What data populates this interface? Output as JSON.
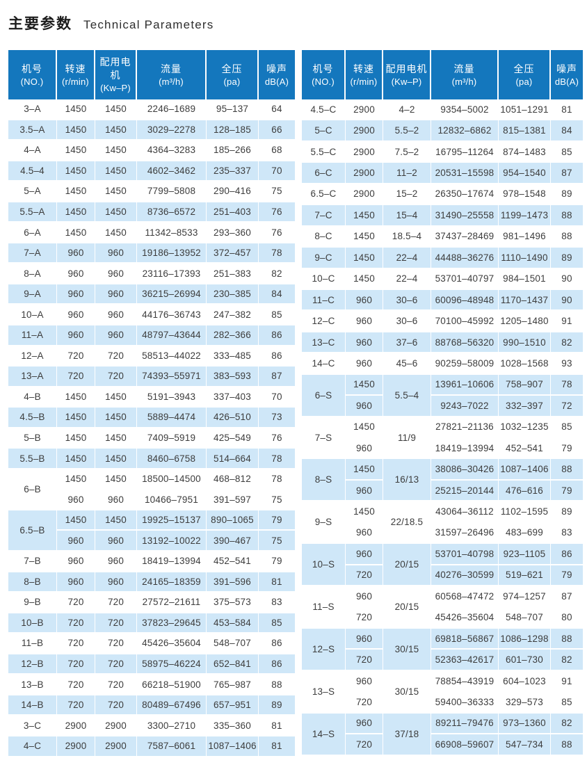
{
  "page_title": {
    "zh": "主要参数",
    "en": "Technical Parameters"
  },
  "table_columns": [
    {
      "zh": "机号",
      "sub": "(NO.)"
    },
    {
      "zh": "转速",
      "sub": "(r/min)"
    },
    {
      "zh": "配用电机",
      "sub": "(Kw–P)"
    },
    {
      "zh": "流量",
      "sub": "(m³/h)"
    },
    {
      "zh": "全压",
      "sub": "(pa)"
    },
    {
      "zh": "噪声",
      "sub": "dB(A)"
    }
  ],
  "colors": {
    "header_bg": "#1477bd",
    "row_alt_bg": "#cfe7f8",
    "text_color": "#3c3c3c"
  },
  "tables": {
    "left": {
      "rows": [
        {
          "no": "3–A",
          "speed": "1450",
          "motor": "1450",
          "flow": "2246–1689",
          "pressure": "95–137",
          "noise": "64"
        },
        {
          "no": "3.5–A",
          "speed": "1450",
          "motor": "1450",
          "flow": "3029–2278",
          "pressure": "128–185",
          "noise": "66"
        },
        {
          "no": "4–A",
          "speed": "1450",
          "motor": "1450",
          "flow": "4364–3283",
          "pressure": "185–266",
          "noise": "68"
        },
        {
          "no": "4.5–4",
          "speed": "1450",
          "motor": "1450",
          "flow": "4602–3462",
          "pressure": "235–337",
          "noise": "70"
        },
        {
          "no": "5–A",
          "speed": "1450",
          "motor": "1450",
          "flow": "7799–5808",
          "pressure": "290–416",
          "noise": "75"
        },
        {
          "no": "5.5–A",
          "speed": "1450",
          "motor": "1450",
          "flow": "8736–6572",
          "pressure": "251–403",
          "noise": "76"
        },
        {
          "no": "6–A",
          "speed": "1450",
          "motor": "1450",
          "flow": "11342–8533",
          "pressure": "293–360",
          "noise": "76"
        },
        {
          "no": "7–A",
          "speed": "960",
          "motor": "960",
          "flow": "19186–13952",
          "pressure": "372–457",
          "noise": "78"
        },
        {
          "no": "8–A",
          "speed": "960",
          "motor": "960",
          "flow": "23116–17393",
          "pressure": "251–383",
          "noise": "82"
        },
        {
          "no": "9–A",
          "speed": "960",
          "motor": "960",
          "flow": "36215–26994",
          "pressure": "230–385",
          "noise": "84"
        },
        {
          "no": "10–A",
          "speed": "960",
          "motor": "960",
          "flow": "44176–36743",
          "pressure": "247–382",
          "noise": "85"
        },
        {
          "no": "11–A",
          "speed": "960",
          "motor": "960",
          "flow": "48797–43644",
          "pressure": "282–366",
          "noise": "86"
        },
        {
          "no": "12–A",
          "speed": "720",
          "motor": "720",
          "flow": "58513–44022",
          "pressure": "333–485",
          "noise": "86"
        },
        {
          "no": "13–A",
          "speed": "720",
          "motor": "720",
          "flow": "74393–55971",
          "pressure": "383–593",
          "noise": "87"
        },
        {
          "no": "4–B",
          "speed": "1450",
          "motor": "1450",
          "flow": "5191–3943",
          "pressure": "337–403",
          "noise": "70"
        },
        {
          "no": "4.5–B",
          "speed": "1450",
          "motor": "1450",
          "flow": "5889–4474",
          "pressure": "426–510",
          "noise": "73"
        },
        {
          "no": "5–B",
          "speed": "1450",
          "motor": "1450",
          "flow": "7409–5919",
          "pressure": "425–549",
          "noise": "76"
        },
        {
          "no": "5.5–B",
          "speed": "1450",
          "motor": "1450",
          "flow": "8460–6758",
          "pressure": "514–664",
          "noise": "78"
        },
        {
          "no": "6–B",
          "sub": [
            {
              "speed": "1450",
              "motor": "1450",
              "flow": "18500–14500",
              "pressure": "468–812",
              "noise": "78"
            },
            {
              "speed": "960",
              "motor": "960",
              "flow": "10466–7951",
              "pressure": "391–597",
              "noise": "75"
            }
          ]
        },
        {
          "no": "6.5–B",
          "sub": [
            {
              "speed": "1450",
              "motor": "1450",
              "flow": "19925–15137",
              "pressure": "890–1065",
              "noise": "79"
            },
            {
              "speed": "960",
              "motor": "960",
              "flow": "13192–10022",
              "pressure": "390–467",
              "noise": "75"
            }
          ]
        },
        {
          "no": "7–B",
          "speed": "960",
          "motor": "960",
          "flow": "18419–13994",
          "pressure": "452–541",
          "noise": "79"
        },
        {
          "no": "8–B",
          "speed": "960",
          "motor": "960",
          "flow": "24165–18359",
          "pressure": "391–596",
          "noise": "81"
        },
        {
          "no": "9–B",
          "speed": "720",
          "motor": "720",
          "flow": "27572–21611",
          "pressure": "375–573",
          "noise": "83"
        },
        {
          "no": "10–B",
          "speed": "720",
          "motor": "720",
          "flow": "37823–29645",
          "pressure": "453–584",
          "noise": "85"
        },
        {
          "no": "11–B",
          "speed": "720",
          "motor": "720",
          "flow": "45426–35604",
          "pressure": "548–707",
          "noise": "86"
        },
        {
          "no": "12–B",
          "speed": "720",
          "motor": "720",
          "flow": "58975–46224",
          "pressure": "652–841",
          "noise": "86"
        },
        {
          "no": "13–B",
          "speed": "720",
          "motor": "720",
          "flow": "66218–51900",
          "pressure": "765–987",
          "noise": "88"
        },
        {
          "no": "14–B",
          "speed": "720",
          "motor": "720",
          "flow": "80489–67496",
          "pressure": "657–951",
          "noise": "89"
        },
        {
          "no": "3–C",
          "speed": "2900",
          "motor": "2900",
          "flow": "3300–2710",
          "pressure": "335–360",
          "noise": "81"
        },
        {
          "no": "4–C",
          "speed": "2900",
          "motor": "2900",
          "flow": "7587–6061",
          "pressure": "1087–1406",
          "noise": "81"
        }
      ]
    },
    "right": {
      "rows": [
        {
          "no": "4.5–C",
          "speed": "2900",
          "motor": "4–2",
          "flow": "9354–5002",
          "pressure": "1051–1291",
          "noise": "81"
        },
        {
          "no": "5–C",
          "speed": "2900",
          "motor": "5.5–2",
          "flow": "12832–6862",
          "pressure": "815–1381",
          "noise": "84"
        },
        {
          "no": "5.5–C",
          "speed": "2900",
          "motor": "7.5–2",
          "flow": "16795–11264",
          "pressure": "874–1483",
          "noise": "85"
        },
        {
          "no": "6–C",
          "speed": "2900",
          "motor": "11–2",
          "flow": "20531–15598",
          "pressure": "954–1540",
          "noise": "87"
        },
        {
          "no": "6.5–C",
          "speed": "2900",
          "motor": "15–2",
          "flow": "26350–17674",
          "pressure": "978–1548",
          "noise": "89"
        },
        {
          "no": "7–C",
          "speed": "1450",
          "motor": "15–4",
          "flow": "31490–25558",
          "pressure": "1199–1473",
          "noise": "88"
        },
        {
          "no": "8–C",
          "speed": "1450",
          "motor": "18.5–4",
          "flow": "37437–28469",
          "pressure": "981–1496",
          "noise": "88"
        },
        {
          "no": "9–C",
          "speed": "1450",
          "motor": "22–4",
          "flow": "44488–36276",
          "pressure": "1110–1490",
          "noise": "89"
        },
        {
          "no": "10–C",
          "speed": "1450",
          "motor": "22–4",
          "flow": "53701–40797",
          "pressure": "984–1501",
          "noise": "90"
        },
        {
          "no": "11–C",
          "speed": "960",
          "motor": "30–6",
          "flow": "60096–48948",
          "pressure": "1170–1437",
          "noise": "90"
        },
        {
          "no": "12–C",
          "speed": "960",
          "motor": "30–6",
          "flow": "70100–45992",
          "pressure": "1205–1480",
          "noise": "91"
        },
        {
          "no": "13–C",
          "speed": "960",
          "motor": "37–6",
          "flow": "88768–56320",
          "pressure": "990–1510",
          "noise": "82"
        },
        {
          "no": "14–C",
          "speed": "960",
          "motor": "45–6",
          "flow": "90259–58009",
          "pressure": "1028–1568",
          "noise": "93"
        },
        {
          "no": "6–S",
          "motor": "5.5–4",
          "sub": [
            {
              "speed": "1450",
              "flow": "13961–10606",
              "pressure": "758–907",
              "noise": "78"
            },
            {
              "speed": "960",
              "flow": "9243–7022",
              "pressure": "332–397",
              "noise": "72"
            }
          ]
        },
        {
          "no": "7–S",
          "motor": "11/9",
          "sub": [
            {
              "speed": "1450",
              "flow": "27821–21136",
              "pressure": "1032–1235",
              "noise": "85"
            },
            {
              "speed": "960",
              "flow": "18419–13994",
              "pressure": "452–541",
              "noise": "79"
            }
          ]
        },
        {
          "no": "8–S",
          "motor": "16/13",
          "sub": [
            {
              "speed": "1450",
              "flow": "38086–30426",
              "pressure": "1087–1406",
              "noise": "88"
            },
            {
              "speed": "960",
              "flow": "25215–20144",
              "pressure": "476–616",
              "noise": "79"
            }
          ]
        },
        {
          "no": "9–S",
          "motor": "22/18.5",
          "sub": [
            {
              "speed": "1450",
              "flow": "43064–36112",
              "pressure": "1102–1595",
              "noise": "89"
            },
            {
              "speed": "960",
              "flow": "31597–26496",
              "pressure": "483–699",
              "noise": "83"
            }
          ]
        },
        {
          "no": "10–S",
          "motor": "20/15",
          "sub": [
            {
              "speed": "960",
              "flow": "53701–40798",
              "pressure": "923–1105",
              "noise": "86"
            },
            {
              "speed": "720",
              "flow": "40276–30599",
              "pressure": "519–621",
              "noise": "79"
            }
          ]
        },
        {
          "no": "11–S",
          "motor": "20/15",
          "sub": [
            {
              "speed": "960",
              "flow": "60568–47472",
              "pressure": "974–1257",
              "noise": "87"
            },
            {
              "speed": "720",
              "flow": "45426–35604",
              "pressure": "548–707",
              "noise": "80"
            }
          ]
        },
        {
          "no": "12–S",
          "motor": "30/15",
          "sub": [
            {
              "speed": "960",
              "flow": "69818–56867",
              "pressure": "1086–1298",
              "noise": "88"
            },
            {
              "speed": "720",
              "flow": "52363–42617",
              "pressure": "601–730",
              "noise": "82"
            }
          ]
        },
        {
          "no": "13–S",
          "motor": "30/15",
          "sub": [
            {
              "speed": "960",
              "flow": "78854–43919",
              "pressure": "604–1023",
              "noise": "91"
            },
            {
              "speed": "720",
              "flow": "59400–36333",
              "pressure": "329–573",
              "noise": "85"
            }
          ]
        },
        {
          "no": "14–S",
          "motor": "37/18",
          "sub": [
            {
              "speed": "960",
              "flow": "89211–79476",
              "pressure": "973–1360",
              "noise": "82"
            },
            {
              "speed": "720",
              "flow": "66908–59607",
              "pressure": "547–734",
              "noise": "88"
            }
          ]
        }
      ]
    }
  }
}
